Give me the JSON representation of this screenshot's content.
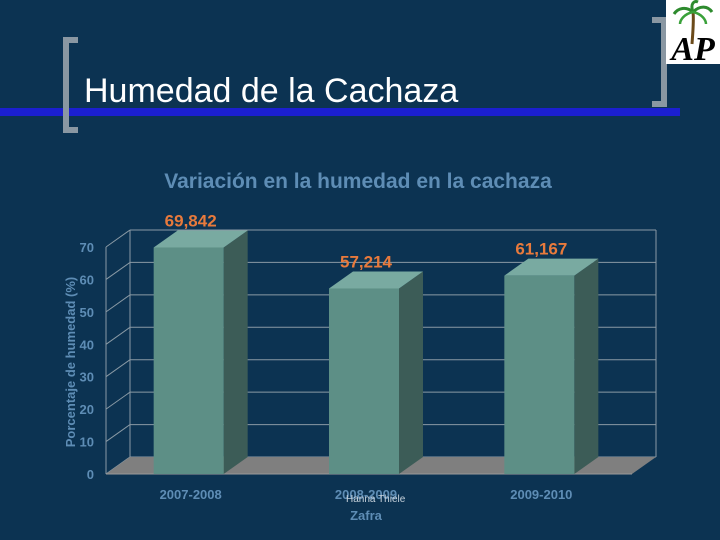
{
  "slide": {
    "title": "Humedad de la Cachaza",
    "logo_text": "AP",
    "footer": "Hanna Thiele"
  },
  "chart_data": {
    "type": "bar",
    "title": "Variación en la humedad en la cachaza",
    "xlabel": "Zafra",
    "ylabel": "Porcentaje de humedad (%)",
    "categories": [
      "2007-2008",
      "2008-2009",
      "2009-2010"
    ],
    "values": [
      69.842,
      57.214,
      61.167
    ],
    "value_labels": [
      "69,842",
      "57,214",
      "61,167"
    ],
    "ylim": [
      0,
      70
    ],
    "yticks": [
      "0",
      "10",
      "20",
      "30",
      "40",
      "50",
      "60",
      "70"
    ],
    "grid": true,
    "legend": "none",
    "colors": {
      "bar_front": "#5d8f86",
      "bar_side": "#3c5c57",
      "bar_top": "#79aaa1",
      "value_label": "#e87a3c",
      "title": "#5e8db5",
      "axis_text": "#5e8db5",
      "grid": "#8a9aa5",
      "floor": "#7f7f7f"
    }
  }
}
